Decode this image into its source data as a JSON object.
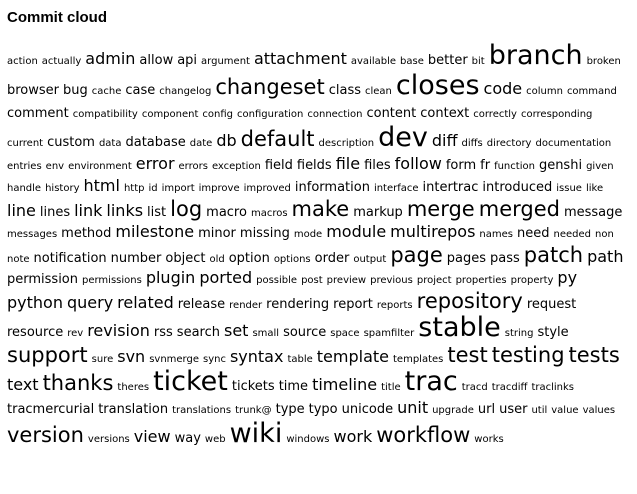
{
  "title": "Commit cloud",
  "tags": [
    {
      "t": "action",
      "s": 1
    },
    {
      "t": "actually",
      "s": 1
    },
    {
      "t": "admin",
      "s": 3
    },
    {
      "t": "allow",
      "s": 2
    },
    {
      "t": "api",
      "s": 2
    },
    {
      "t": "argument",
      "s": 1
    },
    {
      "t": "attachment",
      "s": 3
    },
    {
      "t": "available",
      "s": 1
    },
    {
      "t": "base",
      "s": 1
    },
    {
      "t": "better",
      "s": 2
    },
    {
      "t": "bit",
      "s": 1
    },
    {
      "t": "branch",
      "s": 5
    },
    {
      "t": "broken",
      "s": 1
    },
    {
      "t": "browser",
      "s": 2
    },
    {
      "t": "bug",
      "s": 2
    },
    {
      "t": "cache",
      "s": 1
    },
    {
      "t": "case",
      "s": 2
    },
    {
      "t": "changelog",
      "s": 1
    },
    {
      "t": "changeset",
      "s": 4
    },
    {
      "t": "class",
      "s": 2
    },
    {
      "t": "clean",
      "s": 1
    },
    {
      "t": "closes",
      "s": 5
    },
    {
      "t": "code",
      "s": 3
    },
    {
      "t": "column",
      "s": 1
    },
    {
      "t": "command",
      "s": 1
    },
    {
      "t": "comment",
      "s": 2
    },
    {
      "t": "compatibility",
      "s": 1
    },
    {
      "t": "component",
      "s": 1
    },
    {
      "t": "config",
      "s": 1
    },
    {
      "t": "configuration",
      "s": 1
    },
    {
      "t": "connection",
      "s": 1
    },
    {
      "t": "content",
      "s": 2
    },
    {
      "t": "context",
      "s": 2
    },
    {
      "t": "correctly",
      "s": 1
    },
    {
      "t": "corresponding",
      "s": 1
    },
    {
      "t": "current",
      "s": 1
    },
    {
      "t": "custom",
      "s": 2
    },
    {
      "t": "data",
      "s": 1
    },
    {
      "t": "database",
      "s": 2
    },
    {
      "t": "date",
      "s": 1
    },
    {
      "t": "db",
      "s": 3
    },
    {
      "t": "default",
      "s": 4
    },
    {
      "t": "description",
      "s": 1
    },
    {
      "t": "dev",
      "s": 5
    },
    {
      "t": "diff",
      "s": 3
    },
    {
      "t": "diffs",
      "s": 1
    },
    {
      "t": "directory",
      "s": 1
    },
    {
      "t": "documentation",
      "s": 1
    },
    {
      "t": "entries",
      "s": 1
    },
    {
      "t": "env",
      "s": 1
    },
    {
      "t": "environment",
      "s": 1
    },
    {
      "t": "error",
      "s": 3
    },
    {
      "t": "errors",
      "s": 1
    },
    {
      "t": "exception",
      "s": 1
    },
    {
      "t": "field",
      "s": 2
    },
    {
      "t": "fields",
      "s": 2
    },
    {
      "t": "file",
      "s": 3
    },
    {
      "t": "files",
      "s": 2
    },
    {
      "t": "follow",
      "s": 3
    },
    {
      "t": "form",
      "s": 2
    },
    {
      "t": "fr",
      "s": 2
    },
    {
      "t": "function",
      "s": 1
    },
    {
      "t": "genshi",
      "s": 2
    },
    {
      "t": "given",
      "s": 1
    },
    {
      "t": "handle",
      "s": 1
    },
    {
      "t": "history",
      "s": 1
    },
    {
      "t": "html",
      "s": 3
    },
    {
      "t": "http",
      "s": 1
    },
    {
      "t": "id",
      "s": 1
    },
    {
      "t": "import",
      "s": 1
    },
    {
      "t": "improve",
      "s": 1
    },
    {
      "t": "improved",
      "s": 1
    },
    {
      "t": "information",
      "s": 2
    },
    {
      "t": "interface",
      "s": 1
    },
    {
      "t": "intertrac",
      "s": 2
    },
    {
      "t": "introduced",
      "s": 2
    },
    {
      "t": "issue",
      "s": 1
    },
    {
      "t": "like",
      "s": 1
    },
    {
      "t": "line",
      "s": 3
    },
    {
      "t": "lines",
      "s": 2
    },
    {
      "t": "link",
      "s": 3
    },
    {
      "t": "links",
      "s": 3
    },
    {
      "t": "list",
      "s": 2
    },
    {
      "t": "log",
      "s": 4
    },
    {
      "t": "macro",
      "s": 2
    },
    {
      "t": "macros",
      "s": 1
    },
    {
      "t": "make",
      "s": 4
    },
    {
      "t": "markup",
      "s": 2
    },
    {
      "t": "merge",
      "s": 4
    },
    {
      "t": "merged",
      "s": 4
    },
    {
      "t": "message",
      "s": 2
    },
    {
      "t": "messages",
      "s": 1
    },
    {
      "t": "method",
      "s": 2
    },
    {
      "t": "milestone",
      "s": 3
    },
    {
      "t": "minor",
      "s": 2
    },
    {
      "t": "missing",
      "s": 2
    },
    {
      "t": "mode",
      "s": 1
    },
    {
      "t": "module",
      "s": 3
    },
    {
      "t": "multirepos",
      "s": 3
    },
    {
      "t": "names",
      "s": 1
    },
    {
      "t": "need",
      "s": 2
    },
    {
      "t": "needed",
      "s": 1
    },
    {
      "t": "non",
      "s": 1
    },
    {
      "t": "note",
      "s": 1
    },
    {
      "t": "notification",
      "s": 2
    },
    {
      "t": "number",
      "s": 2
    },
    {
      "t": "object",
      "s": 2
    },
    {
      "t": "old",
      "s": 1
    },
    {
      "t": "option",
      "s": 2
    },
    {
      "t": "options",
      "s": 1
    },
    {
      "t": "order",
      "s": 2
    },
    {
      "t": "output",
      "s": 1
    },
    {
      "t": "page",
      "s": 4
    },
    {
      "t": "pages",
      "s": 2
    },
    {
      "t": "pass",
      "s": 2
    },
    {
      "t": "patch",
      "s": 4
    },
    {
      "t": "path",
      "s": 3
    },
    {
      "t": "permission",
      "s": 2
    },
    {
      "t": "permissions",
      "s": 1
    },
    {
      "t": "plugin",
      "s": 3
    },
    {
      "t": "ported",
      "s": 3
    },
    {
      "t": "possible",
      "s": 1
    },
    {
      "t": "post",
      "s": 1
    },
    {
      "t": "preview",
      "s": 1
    },
    {
      "t": "previous",
      "s": 1
    },
    {
      "t": "project",
      "s": 1
    },
    {
      "t": "properties",
      "s": 1
    },
    {
      "t": "property",
      "s": 1
    },
    {
      "t": "py",
      "s": 3
    },
    {
      "t": "python",
      "s": 3
    },
    {
      "t": "query",
      "s": 3
    },
    {
      "t": "related",
      "s": 3
    },
    {
      "t": "release",
      "s": 2
    },
    {
      "t": "render",
      "s": 1
    },
    {
      "t": "rendering",
      "s": 2
    },
    {
      "t": "report",
      "s": 2
    },
    {
      "t": "reports",
      "s": 1
    },
    {
      "t": "repository",
      "s": 4
    },
    {
      "t": "request",
      "s": 2
    },
    {
      "t": "resource",
      "s": 2
    },
    {
      "t": "rev",
      "s": 1
    },
    {
      "t": "revision",
      "s": 3
    },
    {
      "t": "rss",
      "s": 2
    },
    {
      "t": "search",
      "s": 2
    },
    {
      "t": "set",
      "s": 3
    },
    {
      "t": "small",
      "s": 1
    },
    {
      "t": "source",
      "s": 2
    },
    {
      "t": "space",
      "s": 1
    },
    {
      "t": "spamfilter",
      "s": 1
    },
    {
      "t": "stable",
      "s": 5
    },
    {
      "t": "string",
      "s": 1
    },
    {
      "t": "style",
      "s": 2
    },
    {
      "t": "support",
      "s": 4
    },
    {
      "t": "sure",
      "s": 1
    },
    {
      "t": "svn",
      "s": 3
    },
    {
      "t": "svnmerge",
      "s": 1
    },
    {
      "t": "sync",
      "s": 1
    },
    {
      "t": "syntax",
      "s": 3
    },
    {
      "t": "table",
      "s": 1
    },
    {
      "t": "template",
      "s": 3
    },
    {
      "t": "templates",
      "s": 1
    },
    {
      "t": "test",
      "s": 4
    },
    {
      "t": "testing",
      "s": 4
    },
    {
      "t": "tests",
      "s": 4
    },
    {
      "t": "text",
      "s": 3
    },
    {
      "t": "thanks",
      "s": 4
    },
    {
      "t": "theres",
      "s": 1
    },
    {
      "t": "ticket",
      "s": 5
    },
    {
      "t": "tickets",
      "s": 2
    },
    {
      "t": "time",
      "s": 2
    },
    {
      "t": "timeline",
      "s": 3
    },
    {
      "t": "title",
      "s": 1
    },
    {
      "t": "trac",
      "s": 5
    },
    {
      "t": "tracd",
      "s": 1
    },
    {
      "t": "tracdiff",
      "s": 1
    },
    {
      "t": "traclinks",
      "s": 1
    },
    {
      "t": "tracmercurial",
      "s": 2
    },
    {
      "t": "translation",
      "s": 2
    },
    {
      "t": "translations",
      "s": 1
    },
    {
      "t": "trunk@",
      "s": 1
    },
    {
      "t": "type",
      "s": 2
    },
    {
      "t": "typo",
      "s": 2
    },
    {
      "t": "unicode",
      "s": 2
    },
    {
      "t": "unit",
      "s": 3
    },
    {
      "t": "upgrade",
      "s": 1
    },
    {
      "t": "url",
      "s": 2
    },
    {
      "t": "user",
      "s": 2
    },
    {
      "t": "util",
      "s": 1
    },
    {
      "t": "value",
      "s": 1
    },
    {
      "t": "values",
      "s": 1
    },
    {
      "t": "version",
      "s": 4
    },
    {
      "t": "versions",
      "s": 1
    },
    {
      "t": "view",
      "s": 3
    },
    {
      "t": "way",
      "s": 2
    },
    {
      "t": "web",
      "s": 1
    },
    {
      "t": "wiki",
      "s": 5
    },
    {
      "t": "windows",
      "s": 1
    },
    {
      "t": "work",
      "s": 3
    },
    {
      "t": "workflow",
      "s": 4
    },
    {
      "t": "works",
      "s": 1
    }
  ]
}
